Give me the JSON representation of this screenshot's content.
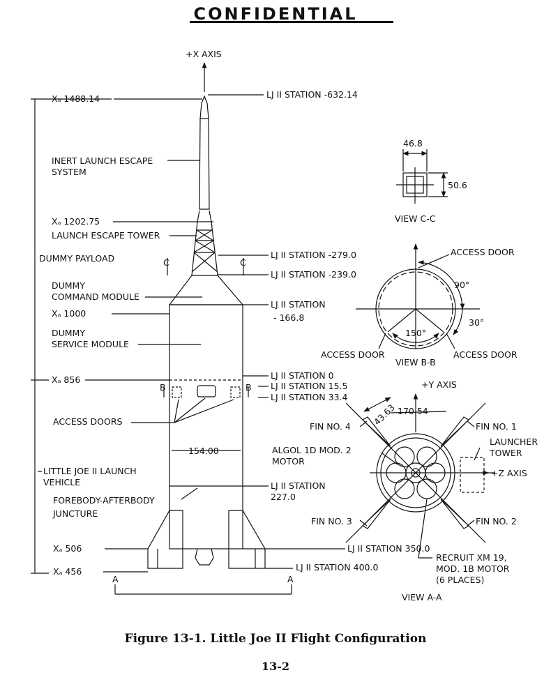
{
  "header": {
    "stamp": "CONFIDENTIAL"
  },
  "labels": {
    "x_axis": "+X AXIS",
    "xa_1488": "Xₐ 1488.14",
    "station_m632": "LJ II STATION -632.14",
    "les": "INERT LAUNCH ESCAPE",
    "les2": "SYSTEM",
    "xa_1202": "Xₐ 1202.75",
    "tower": "LAUNCH ESCAPE TOWER",
    "dummy_payload": "DUMMY PAYLOAD",
    "c_left": "C",
    "c_right": "C",
    "station_m279": "LJ II STATION -279.0",
    "station_m239": "LJ II STATION -239.0",
    "dcm1": "DUMMY",
    "dcm2": "COMMAND MODULE",
    "xa_1000": "Xₐ 1000",
    "station_m166": "LJ II STATION",
    "station_m166b": "- 166.8",
    "dsm1": "DUMMY",
    "dsm2": "SERVICE MODULE",
    "xa_856": "Xₐ 856",
    "station_0": "LJ II STATION 0",
    "station_15": "LJ II STATION 15.5",
    "station_33": "LJ II STATION 33.4",
    "b_left": "B",
    "b_right": "B",
    "access_doors": "ACCESS DOORS",
    "dia_154": "154.00",
    "ljlv1": "LITTLE JOE II LAUNCH",
    "ljlv2": "VEHICLE",
    "fab1": "FOREBODY-AFTERBODY",
    "fab2": "JUNCTURE",
    "algol1": "ALGOL 1D MOD. 2",
    "algol2": "MOTOR",
    "station_227": "LJ II STATION",
    "station_227b": "227.0",
    "xa_506": "Xₐ 506",
    "station_350": "LJ II STATION 350.0",
    "xa_456": "Xₐ 456",
    "station_400": "LJ II STATION 400.0",
    "a_left": "A",
    "a_right": "A",
    "dim_468": "46.8",
    "dim_506": "50.6",
    "view_cc": "VIEW C-C",
    "access_door_top": "ACCESS DOOR",
    "ang_90": "90°",
    "ang_30": "30°",
    "ang_150": "150°",
    "access_door_left": "ACCESS DOOR",
    "access_door_right": "ACCESS DOOR",
    "view_bb": "VIEW B-B",
    "y_axis": "+Y AXIS",
    "dim_4363": "43.63",
    "dim_17054": "170.54",
    "fin4": "FIN NO. 4",
    "fin1": "FIN NO. 1",
    "launcher1": "LAUNCHER",
    "launcher2": "TOWER",
    "z_axis": "+Z AXIS",
    "fin3": "FIN NO. 3",
    "fin2": "FIN NO. 2",
    "recruit1": "RECRUIT XM 19,",
    "recruit2": "MOD. 1B MOTOR",
    "recruit3": "(6 PLACES)",
    "view_aa": "VIEW A-A"
  },
  "footer": {
    "caption": "Figure 13-1.   Little Joe II Flight Configuration",
    "page": "13-2"
  }
}
